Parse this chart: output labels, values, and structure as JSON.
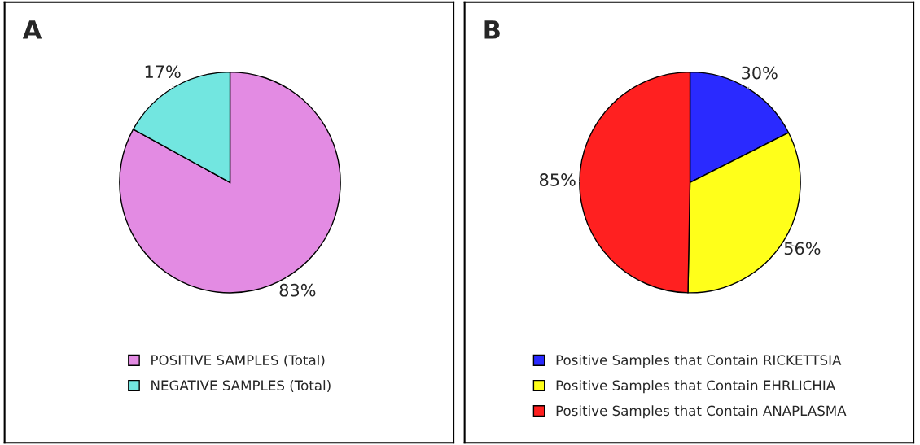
{
  "chart_data": [
    {
      "type": "pie",
      "title": "A",
      "categories": [
        "POSITIVE SAMPLES (Total)",
        "NEGATIVE SAMPLES (Total)"
      ],
      "values": [
        83,
        17
      ],
      "colors": [
        "#e38be3",
        "#72e6e0"
      ],
      "value_labels": [
        "83%",
        "17%"
      ],
      "legend": "bottom"
    },
    {
      "type": "pie",
      "title": "B",
      "categories": [
        "Positive Samples that Contain RICKETTSIA",
        "Positive Samples that Contain EHRLICHIA",
        "Positive Samples that Contain ANAPLASMA"
      ],
      "values": [
        30,
        56,
        85
      ],
      "colors": [
        "#2a2aff",
        "#ffff1a",
        "#ff2020"
      ],
      "value_labels": [
        "30%",
        "56%",
        "85%"
      ],
      "legend": "bottom"
    }
  ]
}
